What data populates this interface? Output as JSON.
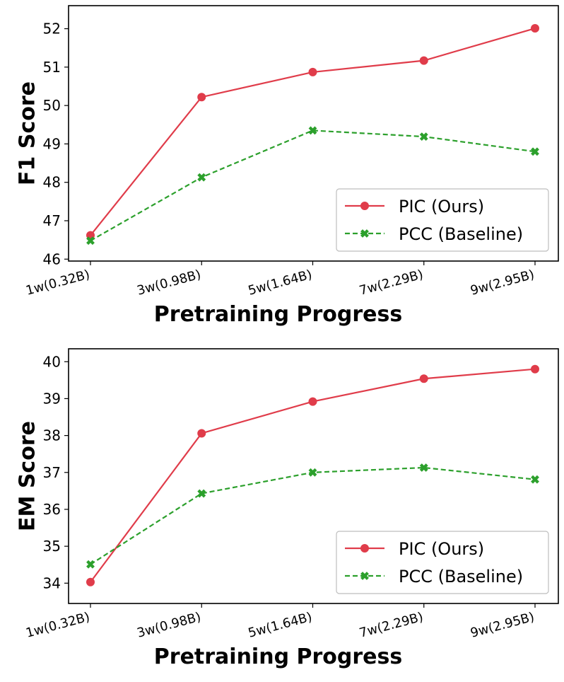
{
  "chart_data": [
    {
      "type": "line",
      "xlabel": "Pretraining Progress",
      "ylabel": "F1 Score",
      "categories": [
        "1w(0.32B)",
        "3w(0.98B)",
        "5w(1.64B)",
        "7w(2.29B)",
        "9w(2.95B)"
      ],
      "ylim": [
        45.95,
        52.6
      ],
      "yticks": [
        46,
        47,
        48,
        49,
        50,
        51,
        52
      ],
      "legend_position": "lower-right",
      "series": [
        {
          "name": "PIC (Ours)",
          "color": "#e03c4a",
          "marker": "circle",
          "linestyle": "solid",
          "values": [
            46.62,
            50.22,
            50.87,
            51.17,
            52.01
          ]
        },
        {
          "name": "PCC (Baseline)",
          "color": "#2ca02c",
          "marker": "x",
          "linestyle": "dashed",
          "values": [
            46.48,
            48.13,
            49.35,
            49.19,
            48.8
          ]
        }
      ]
    },
    {
      "type": "line",
      "xlabel": "Pretraining Progress",
      "ylabel": "EM Score",
      "categories": [
        "1w(0.32B)",
        "3w(0.98B)",
        "5w(1.64B)",
        "7w(2.29B)",
        "9w(2.95B)"
      ],
      "ylim": [
        33.45,
        40.35
      ],
      "yticks": [
        34,
        35,
        36,
        37,
        38,
        39,
        40
      ],
      "legend_position": "lower-right",
      "series": [
        {
          "name": "PIC (Ours)",
          "color": "#e03c4a",
          "marker": "circle",
          "linestyle": "solid",
          "values": [
            34.03,
            38.06,
            38.92,
            39.54,
            39.8
          ]
        },
        {
          "name": "PCC (Baseline)",
          "color": "#2ca02c",
          "marker": "x",
          "linestyle": "dashed",
          "values": [
            34.51,
            36.43,
            37.0,
            37.13,
            36.81
          ]
        }
      ]
    }
  ]
}
